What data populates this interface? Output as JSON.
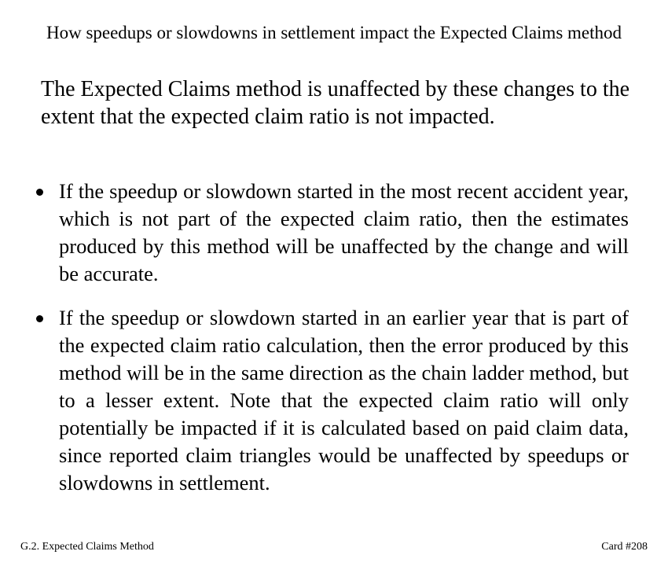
{
  "card": {
    "title": "How speedups or slowdowns in settlement impact the Expected Claims method",
    "intro": "The Expected Claims method is unaffected by these changes to the extent that the expected claim ratio is not impacted.",
    "bullets": [
      "If the speedup or slowdown started in the most recent accident year, which is not part of the expected claim ratio, then the estimates produced by this method will be unaffected by the change and will be accurate.",
      "If the speedup or slowdown started in an earlier year that is part of the expected claim ratio calculation, then the error produced by this method will be in the same direction as the chain ladder method, but to a lesser extent.  Note that the expected claim ratio will only potentially be impacted if it is calculated based on paid claim data, since reported claim triangles would be unaffected by speedups or slowdowns in settlement."
    ]
  },
  "footer": {
    "section": "G.2. Expected Claims Method",
    "card_number": "Card #208"
  }
}
